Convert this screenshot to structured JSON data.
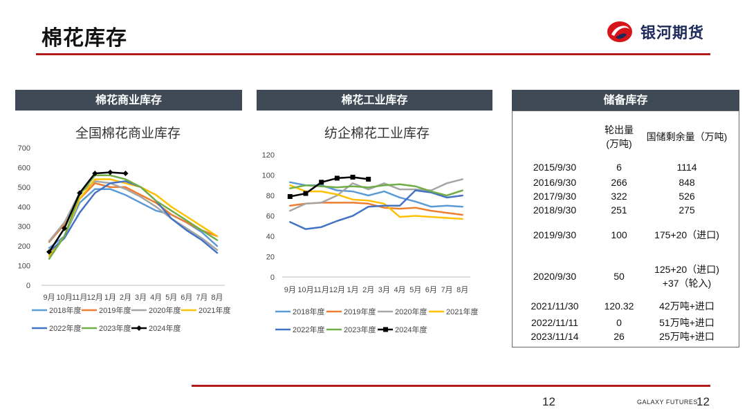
{
  "header": {
    "title": "棉花库存",
    "logo_text": "银河期货"
  },
  "panels": {
    "commercial": {
      "header": "棉花商业库存"
    },
    "industrial": {
      "header": "棉花工业库存"
    },
    "reserve": {
      "header": "储备库存"
    }
  },
  "reserve_table": {
    "col_out": "轮出量\n(万吨)",
    "col_remain": "国储剩余量（万吨)",
    "rows": [
      {
        "date": "2015/9/30",
        "out": "6",
        "remain": "1114"
      },
      {
        "date": "2016/9/30",
        "out": "266",
        "remain": "848"
      },
      {
        "date": "2017/9/30",
        "out": "322",
        "remain": "526"
      },
      {
        "date": "2018/9/30",
        "out": "251",
        "remain": "275"
      },
      {
        "date": "2019/9/30",
        "out": "100",
        "remain": "175+20（进口)"
      },
      {
        "date": "2020/9/30",
        "out": "50",
        "remain": "125+20（进口)\n+37（轮入)"
      },
      {
        "date": "2021/11/30",
        "out": "120.32",
        "remain": "42万吨+进口"
      },
      {
        "date": "2022/11/11",
        "out": "0",
        "remain": "51万吨+进口"
      },
      {
        "date": "2023/11/14",
        "out": "26",
        "remain": "25万吨+进口"
      }
    ]
  },
  "footer": {
    "page_center": "12",
    "brand": "GALAXY FUTURES",
    "page_right": "12"
  },
  "colors": {
    "2018年度": "#5b9bd5",
    "2019年度": "#ed7d31",
    "2020年度": "#a5a5a5",
    "2021年度": "#ffc000",
    "2022年度": "#4472c4",
    "2023年度": "#70ad47",
    "2024年度": "#000000",
    "header_bg": "#3f4a56",
    "rule": "#b11b1b"
  },
  "chart_data": [
    {
      "type": "line",
      "title": "全国棉花商业库存",
      "categories": [
        "9月",
        "10月",
        "11月",
        "12月",
        "1月",
        "2月",
        "3月",
        "4月",
        "5月",
        "6月",
        "7月",
        "8月"
      ],
      "ylim": [
        0,
        700
      ],
      "yticks": [
        0,
        100,
        200,
        300,
        400,
        500,
        600,
        700
      ],
      "legend_position": "bottom",
      "series": [
        {
          "name": "2018年度",
          "values": [
            190,
            250,
            420,
            490,
            490,
            460,
            420,
            380,
            360,
            320,
            270,
            200
          ]
        },
        {
          "name": "2019年度",
          "values": [
            220,
            310,
            440,
            520,
            500,
            500,
            460,
            420,
            360,
            320,
            280,
            250
          ]
        },
        {
          "name": "2020年度",
          "values": [
            225,
            320,
            470,
            530,
            520,
            490,
            450,
            400,
            340,
            290,
            240,
            180
          ]
        },
        {
          "name": "2021年度",
          "values": [
            150,
            250,
            440,
            540,
            540,
            520,
            500,
            460,
            400,
            350,
            300,
            250
          ]
        },
        {
          "name": "2022年度",
          "values": [
            170,
            240,
            370,
            470,
            520,
            530,
            500,
            430,
            340,
            280,
            230,
            165
          ]
        },
        {
          "name": "2023年度",
          "values": [
            135,
            250,
            460,
            560,
            560,
            540,
            500,
            430,
            380,
            330,
            280,
            230
          ]
        },
        {
          "name": "2024年度",
          "values": [
            170,
            290,
            470,
            570,
            575,
            570,
            null,
            null,
            null,
            null,
            null,
            null
          ]
        }
      ]
    },
    {
      "type": "line",
      "title": "纺企棉花工业库存",
      "categories": [
        "9月",
        "10月",
        "11月",
        "12月",
        "1月",
        "2月",
        "3月",
        "4月",
        "5月",
        "6月",
        "7月",
        "8月"
      ],
      "ylim": [
        0,
        120
      ],
      "yticks": [
        0,
        20,
        40,
        60,
        80,
        100,
        120
      ],
      "legend_position": "bottom",
      "series": [
        {
          "name": "2018年度",
          "values": [
            93,
            90,
            90,
            85,
            84,
            80,
            84,
            78,
            74,
            69,
            70,
            69
          ]
        },
        {
          "name": "2019年度",
          "values": [
            70,
            72,
            73,
            73,
            73,
            72,
            68,
            67,
            68,
            65,
            63,
            61
          ]
        },
        {
          "name": "2020年度",
          "values": [
            65,
            72,
            73,
            80,
            92,
            86,
            92,
            86,
            86,
            85,
            92,
            96
          ]
        },
        {
          "name": "2021年度",
          "values": [
            90,
            84,
            84,
            81,
            76,
            75,
            72,
            59,
            60,
            59,
            58,
            57
          ]
        },
        {
          "name": "2022年度",
          "values": [
            54,
            47,
            49,
            55,
            60,
            69,
            70,
            70,
            85,
            83,
            78,
            80
          ]
        },
        {
          "name": "2023年度",
          "values": [
            87,
            90,
            89,
            88,
            89,
            88,
            90,
            91,
            89,
            84,
            80,
            85
          ]
        },
        {
          "name": "2024年度",
          "values": [
            79,
            82,
            93,
            97,
            98,
            96,
            null,
            null,
            null,
            null,
            null,
            null
          ]
        }
      ]
    }
  ]
}
